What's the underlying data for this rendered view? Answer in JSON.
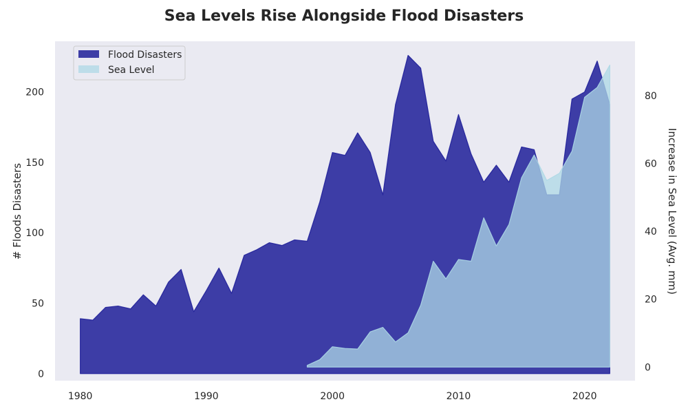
{
  "chart_data": {
    "type": "area",
    "title": "Sea Levels Rise Alongside Flood Disasters",
    "xlabel": "",
    "ylabel_left": "# Floods Disasters",
    "ylabel_right": "Increase in Sea Level (Avg. mm)",
    "xlim": [
      1978,
      2024
    ],
    "ylim_left": [
      -5,
      236
    ],
    "ylim_right": [
      -4,
      96
    ],
    "x_ticks": [
      1980,
      1990,
      2000,
      2010,
      2020
    ],
    "y_ticks_left": [
      0,
      50,
      100,
      150,
      200
    ],
    "y_ticks_right": [
      0,
      20,
      40,
      60,
      80
    ],
    "grid": false,
    "legend_position": "top-left",
    "series": [
      {
        "name": "Flood Disasters",
        "axis": "left",
        "color": "#1f1f99",
        "x": [
          1980,
          1981,
          1982,
          1983,
          1984,
          1985,
          1986,
          1987,
          1988,
          1989,
          1990,
          1991,
          1992,
          1993,
          1994,
          1995,
          1996,
          1997,
          1998,
          1999,
          2000,
          2001,
          2002,
          2003,
          2004,
          2005,
          2006,
          2007,
          2008,
          2009,
          2010,
          2011,
          2012,
          2013,
          2014,
          2015,
          2016,
          2017,
          2018,
          2019,
          2020,
          2021,
          2022
        ],
        "values": [
          39,
          38,
          47,
          48,
          46,
          56,
          48,
          65,
          74,
          44,
          59,
          75,
          57,
          84,
          88,
          93,
          91,
          95,
          94,
          122,
          157,
          155,
          171,
          157,
          127,
          191,
          226,
          217,
          165,
          151,
          184,
          156,
          136,
          148,
          136,
          161,
          159,
          127,
          127,
          195,
          200,
          222,
          191
        ]
      },
      {
        "name": "Sea Level",
        "axis": "right",
        "color": "#add8e6",
        "x": [
          1998,
          1999,
          2000,
          2001,
          2002,
          2003,
          2004,
          2005,
          2006,
          2007,
          2008,
          2009,
          2010,
          2011,
          2012,
          2013,
          2014,
          2015,
          2016,
          2017,
          2018,
          2019,
          2020,
          2021,
          2022
        ],
        "values": [
          0.5,
          2.2,
          6,
          5.5,
          5.3,
          10.4,
          11.7,
          7.4,
          10.1,
          18.2,
          31.2,
          26,
          31.7,
          31.2,
          44,
          35.7,
          42,
          55.8,
          62.5,
          55,
          57.1,
          63.6,
          79.5,
          82.4,
          89
        ]
      }
    ]
  }
}
